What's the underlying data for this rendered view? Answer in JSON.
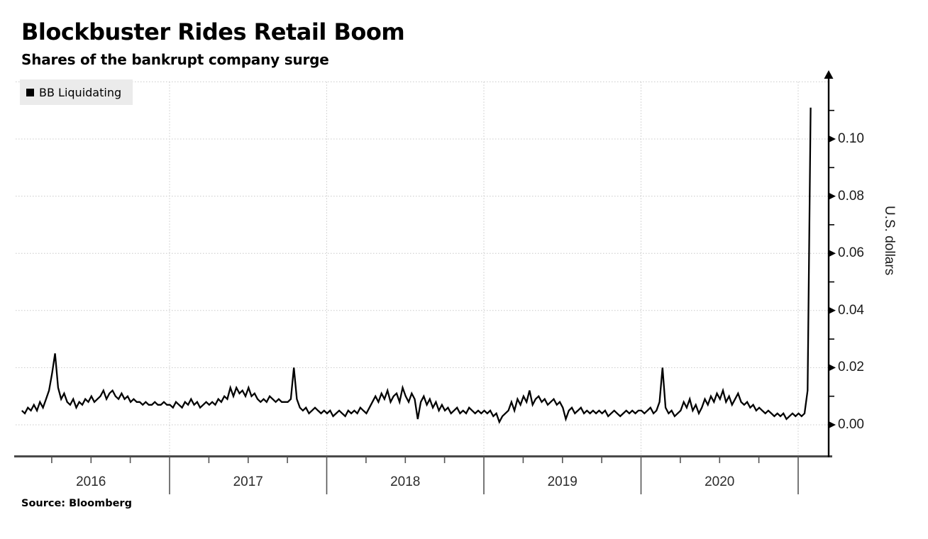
{
  "header": {
    "title": "Blockbuster Rides Retail Boom",
    "subtitle": "Shares of the bankrupt company surge"
  },
  "legend": {
    "label": "BB Liquidating",
    "swatch_color": "#000000",
    "background": "#ebebeb"
  },
  "source": {
    "text": "Source:  Bloomberg"
  },
  "y_axis": {
    "label": "U.S. dollars",
    "ticks": [
      "0.00",
      "0.02",
      "0.04",
      "0.06",
      "0.08",
      "0.10"
    ],
    "tick_values": [
      0,
      0.02,
      0.04,
      0.06,
      0.08,
      0.1
    ],
    "minor_tick_values": [
      0.01,
      0.03,
      0.05,
      0.07,
      0.09,
      0.11
    ]
  },
  "x_axis": {
    "year_labels": [
      "2016",
      "2017",
      "2018",
      "2019",
      "2020"
    ],
    "label_centers": [
      2016.5,
      2017.5,
      2018.5,
      2019.5,
      2020.5
    ],
    "boundary_ticks": [
      2017,
      2018,
      2019,
      2020,
      2021
    ],
    "minor_tick_interval_years": 0.25
  },
  "colors": {
    "line": "#000000",
    "gridline": "#c9c9c9",
    "bottom_axis": "#4a4a4a",
    "right_axis": "#000000",
    "x_tick": "#555555"
  },
  "chart_data": {
    "type": "line",
    "title": "Blockbuster Rides Retail Boom",
    "subtitle": "Shares of the bankrupt company surge",
    "ylabel": "U.S. dollars",
    "xlabel": "",
    "source": "Bloomberg",
    "legend_position": "top-left",
    "grid": "dotted",
    "xlim": [
      2016.02,
      2021.19
    ],
    "ylim": [
      0,
      0.12
    ],
    "y_gridlines": [
      0,
      0.02,
      0.04,
      0.06,
      0.08,
      0.1,
      0.12
    ],
    "x_gridlines": [
      2017,
      2018,
      2019,
      2020,
      2021
    ],
    "series": [
      {
        "name": "BB Liquidating",
        "color": "#000000",
        "units": "U.S. dollars",
        "x_start": 2016.06,
        "x_step": 0.019231,
        "values": [
          0.005,
          0.004,
          0.006,
          0.005,
          0.007,
          0.005,
          0.008,
          0.006,
          0.009,
          0.012,
          0.018,
          0.025,
          0.013,
          0.009,
          0.011,
          0.008,
          0.007,
          0.009,
          0.006,
          0.008,
          0.007,
          0.009,
          0.008,
          0.01,
          0.008,
          0.009,
          0.01,
          0.012,
          0.009,
          0.011,
          0.012,
          0.01,
          0.009,
          0.011,
          0.009,
          0.01,
          0.008,
          0.009,
          0.008,
          0.008,
          0.007,
          0.008,
          0.007,
          0.007,
          0.008,
          0.007,
          0.007,
          0.008,
          0.007,
          0.007,
          0.006,
          0.008,
          0.007,
          0.006,
          0.008,
          0.007,
          0.009,
          0.007,
          0.008,
          0.006,
          0.007,
          0.008,
          0.007,
          0.008,
          0.007,
          0.009,
          0.008,
          0.01,
          0.009,
          0.013,
          0.01,
          0.013,
          0.011,
          0.012,
          0.01,
          0.013,
          0.01,
          0.011,
          0.009,
          0.008,
          0.009,
          0.008,
          0.01,
          0.009,
          0.008,
          0.009,
          0.008,
          0.008,
          0.008,
          0.009,
          0.02,
          0.009,
          0.006,
          0.005,
          0.006,
          0.004,
          0.005,
          0.006,
          0.005,
          0.004,
          0.005,
          0.004,
          0.005,
          0.003,
          0.004,
          0.005,
          0.004,
          0.003,
          0.005,
          0.004,
          0.005,
          0.004,
          0.006,
          0.005,
          0.004,
          0.006,
          0.008,
          0.01,
          0.008,
          0.011,
          0.009,
          0.012,
          0.008,
          0.01,
          0.011,
          0.008,
          0.013,
          0.01,
          0.008,
          0.011,
          0.009,
          0.002,
          0.008,
          0.01,
          0.007,
          0.009,
          0.006,
          0.008,
          0.005,
          0.007,
          0.005,
          0.006,
          0.004,
          0.005,
          0.006,
          0.004,
          0.005,
          0.004,
          0.006,
          0.005,
          0.004,
          0.005,
          0.004,
          0.005,
          0.004,
          0.005,
          0.003,
          0.004,
          0.001,
          0.003,
          0.004,
          0.005,
          0.008,
          0.005,
          0.009,
          0.007,
          0.01,
          0.008,
          0.012,
          0.007,
          0.009,
          0.01,
          0.008,
          0.009,
          0.007,
          0.008,
          0.009,
          0.007,
          0.008,
          0.006,
          0.002,
          0.005,
          0.006,
          0.004,
          0.005,
          0.006,
          0.004,
          0.005,
          0.004,
          0.005,
          0.004,
          0.005,
          0.004,
          0.005,
          0.003,
          0.004,
          0.005,
          0.004,
          0.003,
          0.004,
          0.005,
          0.004,
          0.005,
          0.004,
          0.005,
          0.005,
          0.004,
          0.005,
          0.006,
          0.004,
          0.005,
          0.008,
          0.02,
          0.006,
          0.004,
          0.005,
          0.003,
          0.004,
          0.005,
          0.008,
          0.006,
          0.009,
          0.005,
          0.007,
          0.004,
          0.006,
          0.009,
          0.007,
          0.01,
          0.008,
          0.011,
          0.009,
          0.012,
          0.008,
          0.01,
          0.007,
          0.009,
          0.011,
          0.008,
          0.007,
          0.008,
          0.006,
          0.007,
          0.005,
          0.006,
          0.005,
          0.004,
          0.005,
          0.004,
          0.003,
          0.004,
          0.003,
          0.004,
          0.002,
          0.003,
          0.004,
          0.003,
          0.004,
          0.003,
          0.004,
          0.012,
          0.111
        ]
      }
    ]
  }
}
